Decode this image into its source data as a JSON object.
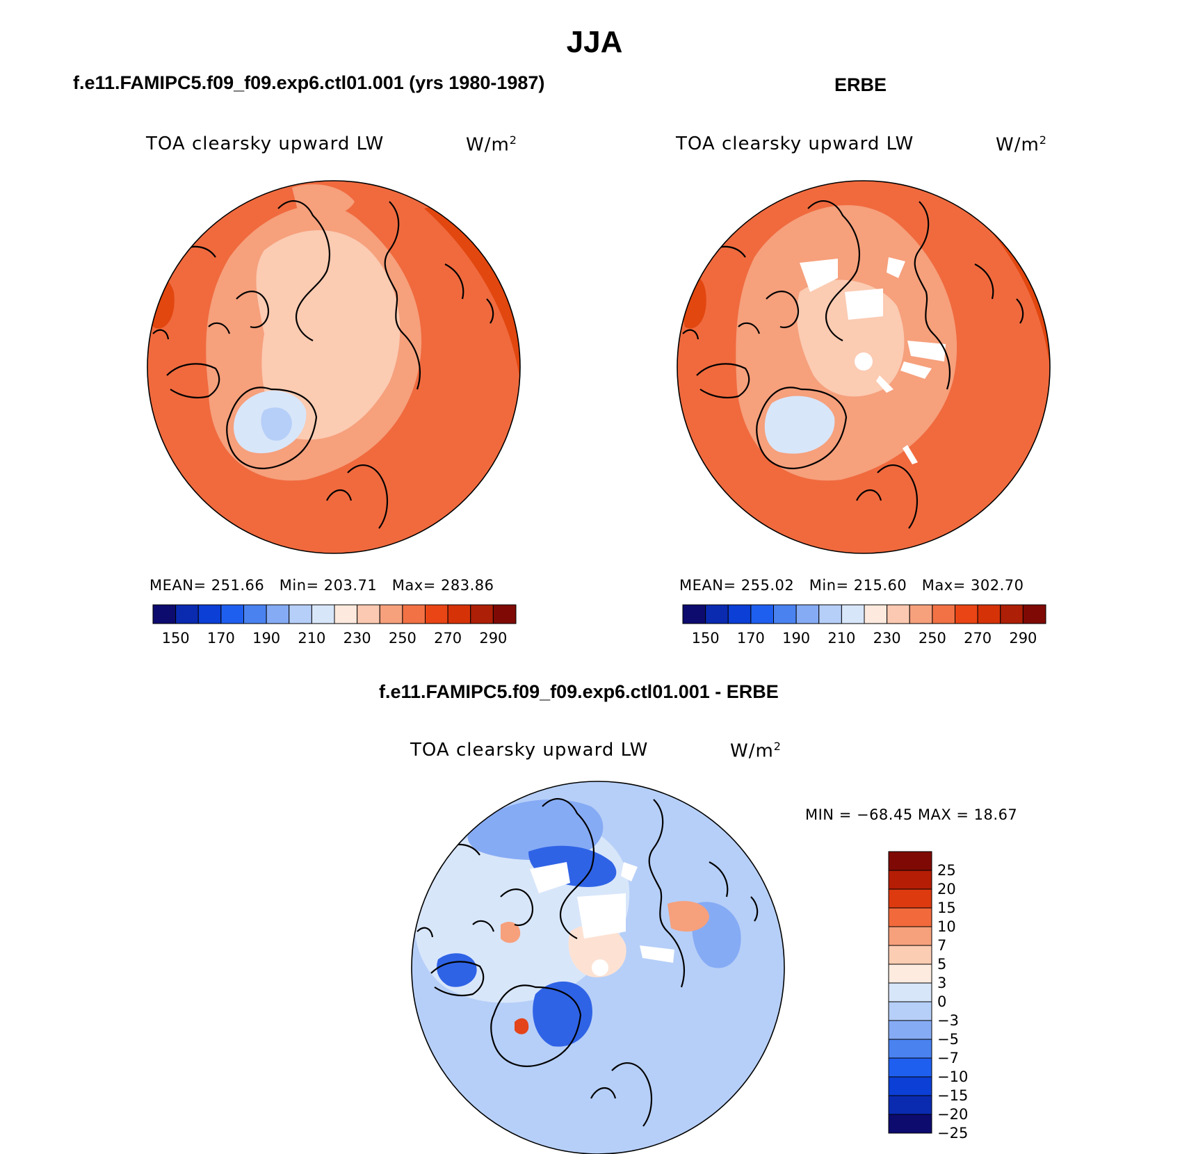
{
  "figure": {
    "title": "JJA",
    "panels": [
      {
        "id": "model",
        "title": "f.e11.FAMIPC5.f09_f09.exp6.ctl01.001 (yrs 1980-1987)",
        "variable": "TOA clearsky upward LW",
        "units": "W/m",
        "units_exp": "2",
        "mean_label": "MEAN= 251.66",
        "min_label": "Min= 203.71",
        "max_label": "Max= 283.86"
      },
      {
        "id": "obs",
        "title": "ERBE",
        "variable": "TOA clearsky upward LW",
        "units": "W/m",
        "units_exp": "2",
        "mean_label": "MEAN= 255.02",
        "min_label": "Min= 215.60",
        "max_label": "Max= 302.70"
      },
      {
        "id": "diff",
        "title": "f.e11.FAMIPC5.f09_f09.exp6.ctl01.001 - ERBE",
        "variable": "TOA clearsky upward LW",
        "units": "W/m",
        "units_exp": "2",
        "minmax_label": "MIN = −68.45 MAX =   18.67"
      }
    ],
    "abs_colorbar": {
      "colors": [
        "#0d0b6e",
        "#0a2ab0",
        "#0b3fd6",
        "#1f5ff0",
        "#4a82f0",
        "#86abf5",
        "#b6cff8",
        "#d8e6fa",
        "#fde9dd",
        "#fbc9b1",
        "#f6a07c",
        "#f27245",
        "#e94515",
        "#d63208",
        "#ad1f06",
        "#7f0a05"
      ],
      "tick_labels": [
        "150",
        "170",
        "190",
        "210",
        "230",
        "250",
        "270",
        "290"
      ]
    },
    "diff_colorbar": {
      "colors": [
        "#7f0a05",
        "#b51d05",
        "#de3a0f",
        "#f26a3c",
        "#f6a07c",
        "#fbcdb3",
        "#fdebe0",
        "#d8e6fa",
        "#b6cff8",
        "#86abf5",
        "#4a82f0",
        "#1f5ff0",
        "#0b3fd6",
        "#0a2ab0",
        "#0d0b6e"
      ],
      "tick_labels": [
        "25",
        "20",
        "15",
        "10",
        "7",
        "5",
        "3",
        "0",
        "−3",
        "−5",
        "−7",
        "−10",
        "−15",
        "−20",
        "−25"
      ]
    },
    "colors": {
      "model_base": "#f06a3e",
      "model_mid": "#f6a07c",
      "model_light": "#fbcbb2",
      "model_dark": "#e2470f",
      "model_cold": "#b6cff8",
      "model_cold2": "#d8e6fa",
      "diff_base": "#b6cff8",
      "diff_light": "#d8e6fa",
      "diff_mid": "#86abf5",
      "diff_dark": "#2f63e6",
      "diff_warm": "#f6a07c",
      "diff_warm2": "#fde2d3",
      "diff_red": "#e4441a"
    }
  }
}
